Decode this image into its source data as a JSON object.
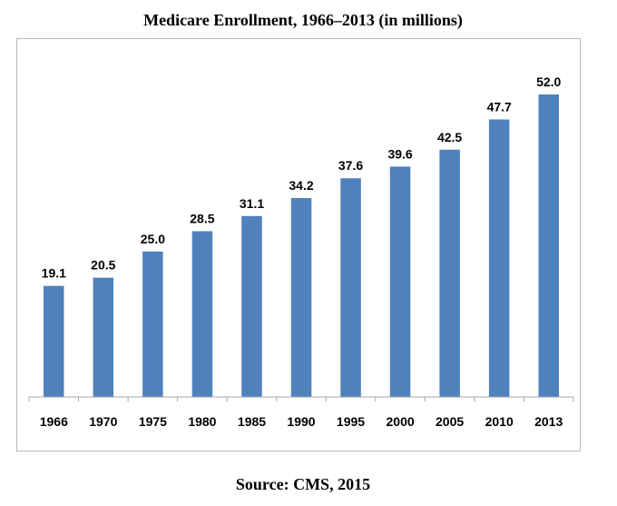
{
  "chart_data": {
    "type": "bar",
    "title": "Medicare Enrollment, 1966–2013 (in millions)",
    "source": "Source:  CMS, 2015",
    "categories": [
      "1966",
      "1970",
      "1975",
      "1980",
      "1985",
      "1990",
      "1995",
      "2000",
      "2005",
      "2010",
      "2013"
    ],
    "values": [
      19.1,
      20.5,
      25.0,
      28.5,
      31.1,
      34.2,
      37.6,
      39.6,
      42.5,
      47.7,
      52.0
    ],
    "value_labels": [
      "19.1",
      "20.5",
      "25.0",
      "28.5",
      "31.1",
      "34.2",
      "37.6",
      "39.6",
      "42.5",
      "47.7",
      "52.0"
    ],
    "xlabel": "",
    "ylabel": "",
    "ylim": [
      0,
      52.0
    ],
    "grid": false,
    "legend": "none",
    "bar_color": "#4f81bd"
  }
}
